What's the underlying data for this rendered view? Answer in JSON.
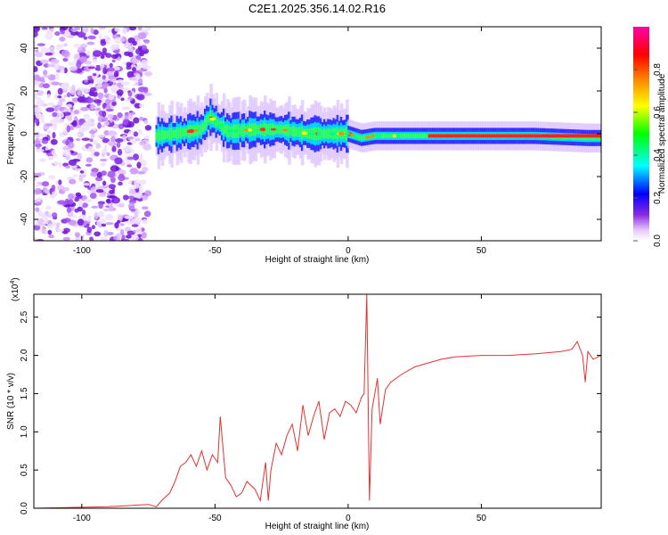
{
  "title": "C2E1.2025.356.14.02.R16",
  "chart_data": [
    {
      "type": "heatmap",
      "name": "spectrogram",
      "xlabel": "Height of straight line (km)",
      "ylabel": "Frequency (Hz)",
      "xlim": [
        -118,
        95
      ],
      "ylim": [
        -50,
        50
      ],
      "xticks": [
        -100,
        -50,
        0,
        50
      ],
      "xtick_labels": [
        "-100",
        "-50",
        "0",
        "50"
      ],
      "yticks": [
        -40,
        -20,
        0,
        20,
        40
      ],
      "ytick_labels": [
        "-40",
        "-20",
        "0",
        "20",
        "40"
      ],
      "noise_region_x": [
        -118,
        -75
      ],
      "ridge": {
        "x": [
          -72,
          -65,
          -55,
          -52,
          -45,
          -35,
          -25,
          -15,
          -5,
          0,
          5,
          10,
          30,
          50,
          70,
          90,
          95
        ],
        "center_hz": [
          -1,
          0,
          2,
          8,
          1,
          2,
          2,
          0,
          0,
          0,
          -2,
          -1,
          -1,
          -1,
          -1,
          -2,
          -2
        ]
      },
      "colorbar": {
        "label": "Normalized spectral amplitude",
        "range": [
          0,
          1
        ],
        "ticks": [
          0.0,
          0.2,
          0.4,
          0.6,
          0.8
        ],
        "tick_labels": [
          "0.0",
          "0.2",
          "0.4",
          "0.6",
          "0.8"
        ],
        "colors": [
          "#ffffff",
          "#e8c8ff",
          "#8a2be2",
          "#0000ff",
          "#00ffff",
          "#00ff00",
          "#ffff00",
          "#ff8800",
          "#ff0000",
          "#ff00aa"
        ]
      }
    },
    {
      "type": "line",
      "name": "snr",
      "xlabel": "Height of straight line (km)",
      "ylabel": "SNR (10 * v/v)",
      "scale_label": "(x10",
      "scale_exponent": "4",
      "xlim": [
        -118,
        95
      ],
      "ylim": [
        0,
        2.8
      ],
      "xticks": [
        -100,
        -50,
        0,
        50
      ],
      "xtick_labels": [
        "-100",
        "-50",
        "0",
        "50"
      ],
      "yticks": [
        0.0,
        0.5,
        1.0,
        1.5,
        2.0,
        2.5
      ],
      "ytick_labels": [
        "0.0",
        "0.5",
        "1.0",
        "1.5",
        "2.0",
        "2.5"
      ],
      "color": "#e83030",
      "series": [
        {
          "name": "SNR",
          "x": [
            -118,
            -90,
            -75,
            -72,
            -70,
            -67,
            -65,
            -63,
            -61,
            -59,
            -57,
            -55,
            -53,
            -51,
            -49,
            -48,
            -46,
            -44,
            -42,
            -40,
            -38,
            -35,
            -33,
            -31,
            -30,
            -29,
            -27,
            -25,
            -23,
            -21,
            -19,
            -17,
            -15,
            -13,
            -11,
            -9,
            -7,
            -5,
            -3,
            -1,
            1,
            3,
            5,
            6,
            7,
            8,
            9,
            10,
            11,
            12,
            14,
            16,
            20,
            25,
            30,
            35,
            40,
            50,
            60,
            70,
            80,
            84,
            86,
            88,
            89,
            90,
            92,
            95
          ],
          "y": [
            0.0,
            0.02,
            0.05,
            0.02,
            0.1,
            0.2,
            0.35,
            0.55,
            0.6,
            0.7,
            0.55,
            0.75,
            0.5,
            0.7,
            0.6,
            1.2,
            0.4,
            0.3,
            0.15,
            0.2,
            0.35,
            0.25,
            0.1,
            0.6,
            0.1,
            0.5,
            0.85,
            0.7,
            0.95,
            1.1,
            0.75,
            1.35,
            0.95,
            1.2,
            1.4,
            0.9,
            1.25,
            1.3,
            1.2,
            1.4,
            1.35,
            1.25,
            1.45,
            1.5,
            2.8,
            0.1,
            1.3,
            1.5,
            1.7,
            1.1,
            1.55,
            1.65,
            1.75,
            1.85,
            1.9,
            1.95,
            1.98,
            2.0,
            2.0,
            2.02,
            2.05,
            2.08,
            2.18,
            2.0,
            1.65,
            2.05,
            1.95,
            2.0
          ]
        }
      ]
    }
  ]
}
